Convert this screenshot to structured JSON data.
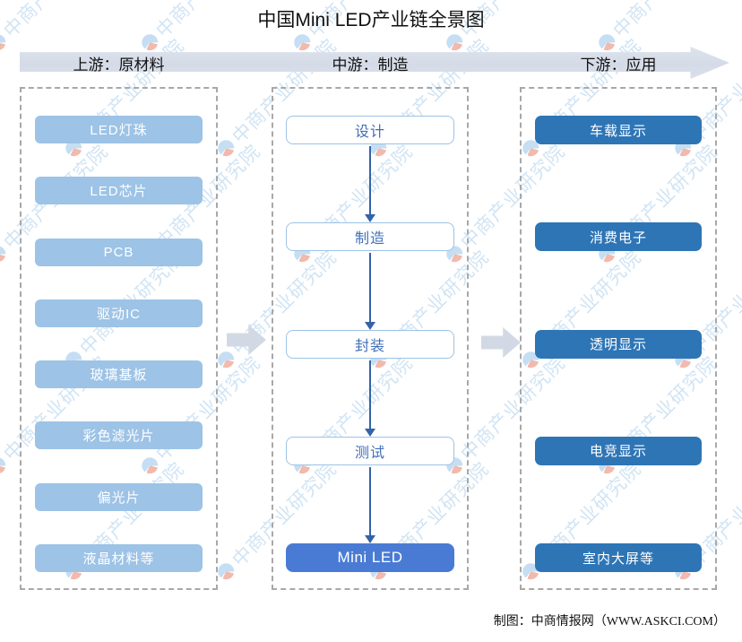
{
  "title": "中国Mini LED产业链全景图",
  "header": {
    "upstream_label": "上游：原材料",
    "midstream_label": "中游：制造",
    "downstream_label": "下游：应用"
  },
  "upstream": {
    "items": [
      "LED灯珠",
      "LED芯片",
      "PCB",
      "驱动IC",
      "玻璃基板",
      "彩色滤光片",
      "偏光片",
      "液晶材料等"
    ]
  },
  "midstream": {
    "steps": [
      "设计",
      "制造",
      "封装",
      "测试"
    ],
    "final": "Mini LED"
  },
  "downstream": {
    "items": [
      "车载显示",
      "消费电子",
      "透明显示",
      "电竞显示",
      "室内大屏等"
    ]
  },
  "footer": {
    "credit": "制图：中商情报网（WWW.ASKCI.COM）"
  },
  "watermark": {
    "text": "中商产业研究院"
  },
  "colors": {
    "upstream_box": "#9dc3e6",
    "midstream_border": "#9dc3e6",
    "midstream_text": "#4170b8",
    "final_box": "#4a7bd4",
    "downstream_box": "#2e75b6",
    "arrow": "#3563a8",
    "connector": "#d2d9e4"
  }
}
